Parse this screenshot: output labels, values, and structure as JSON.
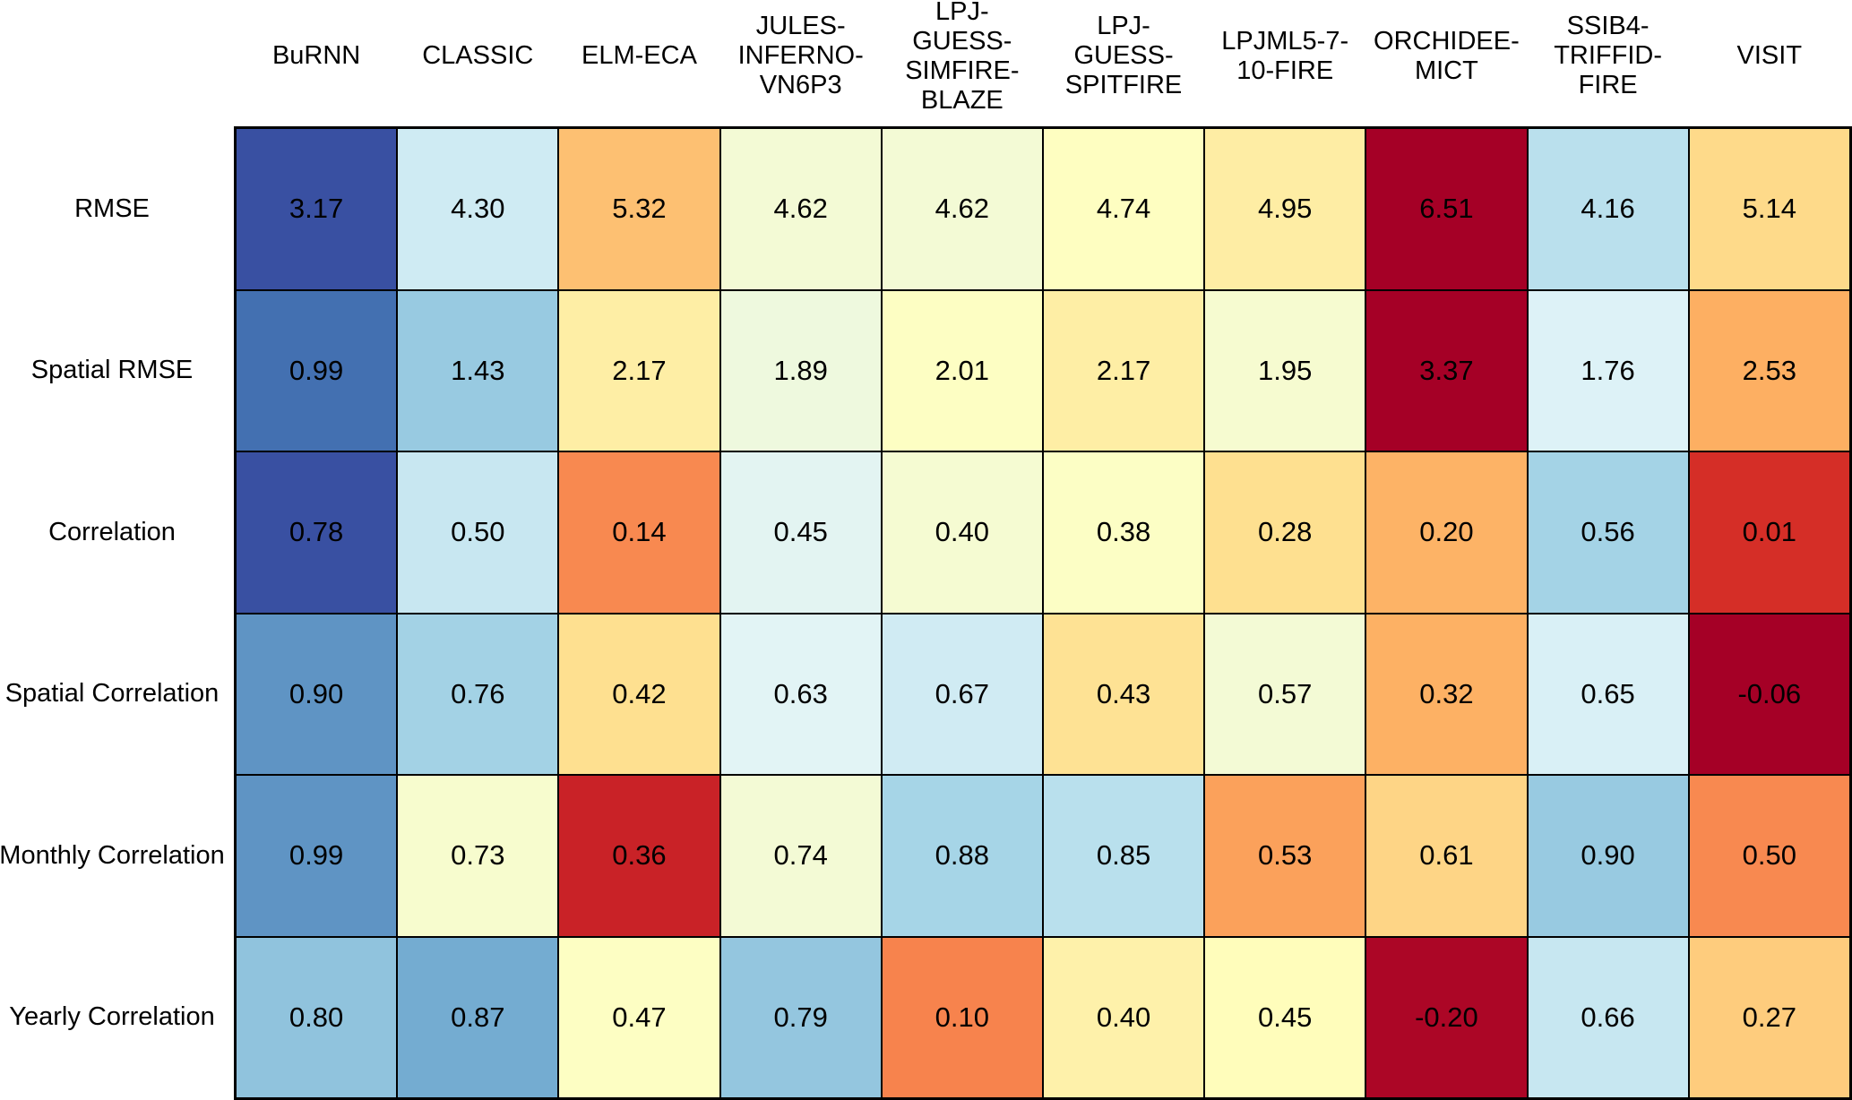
{
  "chart_data": {
    "type": "heatmap",
    "title": "",
    "columns": [
      "BuRNN",
      "CLASSIC",
      "ELM-ECA",
      "JULES-INFERNO-VN6P3",
      "LPJ-GUESS-SIMFIRE-BLAZE",
      "LPJ-GUESS-SPITFIRE",
      "LPJML5-7-10-FIRE",
      "ORCHIDEE-MICT",
      "SSIB4-TRIFFID-FIRE",
      "VISIT"
    ],
    "column_header_lines": [
      [
        "BuRNN"
      ],
      [
        "CLASSIC"
      ],
      [
        "ELM-ECA"
      ],
      [
        "JULES-",
        "INFERNO-",
        "VN6P3"
      ],
      [
        "LPJ-",
        "GUESS-",
        "SIMFIRE-",
        "BLAZE"
      ],
      [
        "LPJ-",
        "GUESS-",
        "SPITFIRE"
      ],
      [
        "LPJML5-7-",
        "10-FIRE"
      ],
      [
        "ORCHIDEE-",
        "MICT"
      ],
      [
        "SSIB4-",
        "TRIFFID-",
        "FIRE"
      ],
      [
        "VISIT"
      ]
    ],
    "row_labels": [
      "RMSE",
      "Spatial RMSE",
      "Correlation",
      "Spatial Correlation",
      "Monthly Correlation",
      "Yearly Correlation"
    ],
    "values": [
      [
        3.17,
        4.3,
        5.32,
        4.62,
        4.62,
        4.74,
        4.95,
        6.51,
        4.16,
        5.14
      ],
      [
        0.99,
        1.43,
        2.17,
        1.89,
        2.01,
        2.17,
        1.95,
        3.37,
        1.76,
        2.53
      ],
      [
        0.78,
        0.5,
        0.14,
        0.45,
        0.4,
        0.38,
        0.28,
        0.2,
        0.56,
        0.01
      ],
      [
        0.9,
        0.76,
        0.42,
        0.63,
        0.67,
        0.43,
        0.57,
        0.32,
        0.65,
        -0.06
      ],
      [
        0.99,
        0.73,
        0.36,
        0.74,
        0.88,
        0.85,
        0.53,
        0.61,
        0.9,
        0.5
      ],
      [
        0.8,
        0.87,
        0.47,
        0.79,
        0.1,
        0.4,
        0.45,
        -0.2,
        0.66,
        0.27
      ]
    ],
    "cell_text": [
      [
        "3.17",
        "4.30",
        "5.32",
        "4.62",
        "4.62",
        "4.74",
        "4.95",
        "6.51",
        "4.16",
        "5.14"
      ],
      [
        "0.99",
        "1.43",
        "2.17",
        "1.89",
        "2.01",
        "2.17",
        "1.95",
        "3.37",
        "1.76",
        "2.53"
      ],
      [
        "0.78",
        "0.50",
        "0.14",
        "0.45",
        "0.40",
        "0.38",
        "0.28",
        "0.20",
        "0.56",
        "0.01"
      ],
      [
        "0.90",
        "0.76",
        "0.42",
        "0.63",
        "0.67",
        "0.43",
        "0.57",
        "0.32",
        "0.65",
        "-0.06"
      ],
      [
        "0.99",
        "0.73",
        "0.36",
        "0.74",
        "0.88",
        "0.85",
        "0.53",
        "0.61",
        "0.90",
        "0.50"
      ],
      [
        "0.80",
        "0.87",
        "0.47",
        "0.79",
        "0.10",
        "0.40",
        "0.45",
        "-0.20",
        "0.66",
        "0.27"
      ]
    ],
    "cell_colors": [
      [
        "#3950a2",
        "#cfebf3",
        "#fdc072",
        "#f3fad5",
        "#f3fad5",
        "#fefec1",
        "#feeda4",
        "#a50026",
        "#bae0ed",
        "#feda8a"
      ],
      [
        "#4370b1",
        "#98cae1",
        "#feeea5",
        "#eef9de",
        "#fdfec3",
        "#feeea5",
        "#f6fbd0",
        "#a50026",
        "#ddf2f7",
        "#fdaf62"
      ],
      [
        "#3950a2",
        "#c8e7f1",
        "#f88950",
        "#e3f4f2",
        "#f5fbd2",
        "#fcfec5",
        "#fee090",
        "#fdb366",
        "#a4d3e6",
        "#d52e27"
      ],
      [
        "#5f94c4",
        "#a3d2e5",
        "#fee090",
        "#e2f4f5",
        "#d0ebf3",
        "#fee294",
        "#f3fad5",
        "#fdb164",
        "#d9f0f6",
        "#a50026"
      ],
      [
        "#5f94c4",
        "#f7fcce",
        "#c92227",
        "#f3fad5",
        "#a6d5e7",
        "#b9e0ed",
        "#fba15b",
        "#fed586",
        "#98cae1",
        "#f88950"
      ],
      [
        "#90c3dd",
        "#74acd1",
        "#fdfec3",
        "#94c6df",
        "#f7834d",
        "#fef1aa",
        "#fffdbb",
        "#ac0626",
        "#c7e7f1",
        "#fecc7d"
      ]
    ],
    "legend": "none",
    "grid": "on",
    "color_meaning": "blue = better performance, red = worse; RdYlBu palette scaled per row"
  },
  "style": {
    "background": "#ffffff",
    "grid_line_color": "#000000",
    "value_text_color": "#000000",
    "label_text_color": "#000000",
    "extreme_blue": "#313695",
    "extreme_red": "#a50026"
  }
}
